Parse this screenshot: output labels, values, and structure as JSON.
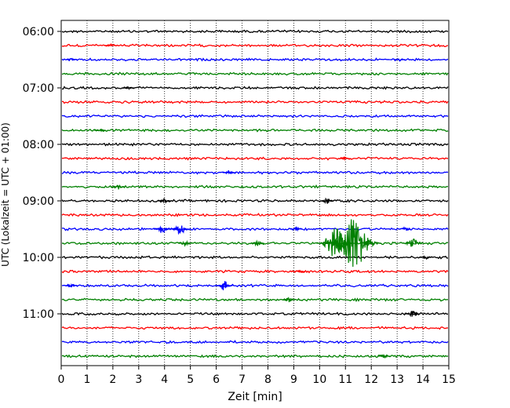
{
  "chart_data": {
    "type": "line",
    "title": "",
    "xlabel": "Zeit  [min]",
    "ylabel": "UTC (Lokalzeit = UTC + 01:00)",
    "xlim": [
      0,
      15
    ],
    "x_ticks": [
      "0",
      "1",
      "2",
      "3",
      "4",
      "5",
      "6",
      "7",
      "8",
      "9",
      "10",
      "11",
      "12",
      "13",
      "14",
      "15"
    ],
    "y_ticks": [
      "06:00",
      "07:00",
      "08:00",
      "09:00",
      "10:00",
      "11:00"
    ],
    "grid": "vertical-dotted",
    "trace_interval_min": 15,
    "color_cycle": [
      "#000000",
      "#ff0000",
      "#0000ff",
      "#008000"
    ],
    "traces": [
      {
        "start": "06:00",
        "color": "#000000",
        "events": []
      },
      {
        "start": "06:15",
        "color": "#ff0000",
        "events": [
          {
            "t": 1.9,
            "amp": 0.35
          }
        ]
      },
      {
        "start": "06:30",
        "color": "#0000ff",
        "events": [
          {
            "t": 0.4,
            "amp": 0.3
          },
          {
            "t": 13.1,
            "amp": 0.3
          }
        ]
      },
      {
        "start": "06:45",
        "color": "#008000",
        "events": []
      },
      {
        "start": "07:00",
        "color": "#000000",
        "events": [
          {
            "t": 2.6,
            "amp": 0.3
          }
        ]
      },
      {
        "start": "07:15",
        "color": "#ff0000",
        "events": []
      },
      {
        "start": "07:30",
        "color": "#0000ff",
        "events": []
      },
      {
        "start": "07:45",
        "color": "#008000",
        "events": [
          {
            "t": 1.5,
            "amp": 0.3
          }
        ]
      },
      {
        "start": "08:00",
        "color": "#000000",
        "events": []
      },
      {
        "start": "08:15",
        "color": "#ff0000",
        "events": [
          {
            "t": 11.0,
            "amp": 0.3
          }
        ]
      },
      {
        "start": "08:30",
        "color": "#0000ff",
        "events": [
          {
            "t": 6.5,
            "amp": 0.5
          }
        ]
      },
      {
        "start": "08:45",
        "color": "#008000",
        "events": [
          {
            "t": 2.2,
            "amp": 0.5
          }
        ]
      },
      {
        "start": "09:00",
        "color": "#000000",
        "events": [
          {
            "t": 4.0,
            "amp": 0.5
          },
          {
            "t": 10.3,
            "amp": 0.6
          }
        ]
      },
      {
        "start": "09:15",
        "color": "#ff0000",
        "events": []
      },
      {
        "start": "09:30",
        "color": "#0000ff",
        "events": [
          {
            "t": 3.9,
            "amp": 0.9
          },
          {
            "t": 4.6,
            "amp": 1.3
          },
          {
            "t": 9.1,
            "amp": 0.4
          },
          {
            "t": 13.3,
            "amp": 0.4
          }
        ]
      },
      {
        "start": "09:45",
        "color": "#008000",
        "events": [
          {
            "t": 4.8,
            "amp": 0.6
          },
          {
            "t": 7.6,
            "amp": 0.6
          },
          {
            "t": 10.6,
            "amp": 3.5
          },
          {
            "t": 11.3,
            "amp": 6.0
          },
          {
            "t": 13.6,
            "amp": 1.3
          }
        ]
      },
      {
        "start": "10:00",
        "color": "#000000",
        "events": [
          {
            "t": 14.1,
            "amp": 0.4
          }
        ]
      },
      {
        "start": "10:15",
        "color": "#ff0000",
        "events": [
          {
            "t": 9.2,
            "amp": 0.4
          }
        ]
      },
      {
        "start": "10:30",
        "color": "#0000ff",
        "events": [
          {
            "t": 0.4,
            "amp": 0.4
          },
          {
            "t": 6.3,
            "amp": 1.1
          }
        ]
      },
      {
        "start": "10:45",
        "color": "#008000",
        "events": [
          {
            "t": 8.8,
            "amp": 0.5
          }
        ]
      },
      {
        "start": "11:00",
        "color": "#000000",
        "events": [
          {
            "t": 13.6,
            "amp": 0.9
          }
        ]
      },
      {
        "start": "11:15",
        "color": "#ff0000",
        "events": []
      },
      {
        "start": "11:30",
        "color": "#0000ff",
        "events": []
      },
      {
        "start": "11:45",
        "color": "#008000",
        "events": [
          {
            "t": 12.5,
            "amp": 0.4
          }
        ]
      }
    ]
  }
}
